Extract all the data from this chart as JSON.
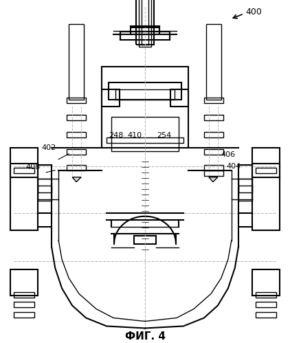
{
  "title": "ФИГ. 4",
  "label_400": "400",
  "label_402": "402",
  "label_404": "404",
  "label_406": "406",
  "label_408": "408",
  "label_410": "410",
  "label_248": "248",
  "label_254": "254",
  "bg_color": "#ffffff",
  "line_color": "#000000",
  "dash_color": "#aaaaaa",
  "figsize": [
    4.22,
    4.99
  ],
  "dpi": 100
}
